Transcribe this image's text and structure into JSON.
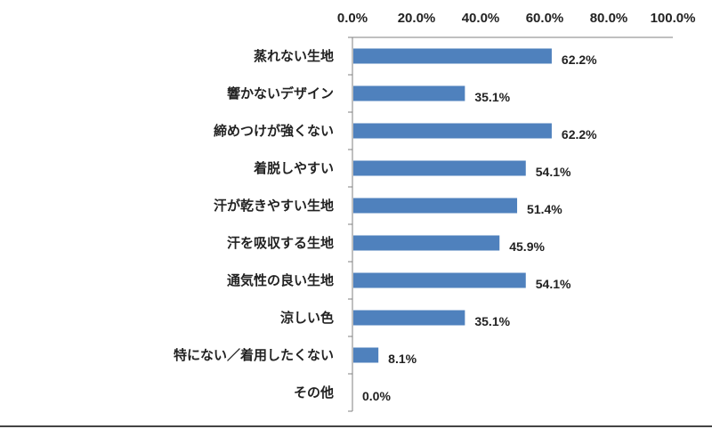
{
  "chart_data": {
    "type": "bar",
    "orientation": "horizontal",
    "title": "",
    "xlabel": "",
    "ylabel": "",
    "categories": [
      "蒸れない生地",
      "響かないデザイン",
      "締めつけが強くない",
      "着脱しやすい",
      "汗が乾きやすい生地",
      "汗を吸収する生地",
      "通気性の良い生地",
      "涼しい色",
      "特にない／着用したくない",
      "その他"
    ],
    "values": [
      62.2,
      35.1,
      62.2,
      54.1,
      51.4,
      45.9,
      54.1,
      35.1,
      8.1,
      0.0
    ],
    "value_labels": [
      "62.2%",
      "35.1%",
      "62.2%",
      "54.1%",
      "51.4%",
      "45.9%",
      "54.1%",
      "35.1%",
      "8.1%",
      "0.0%"
    ],
    "xlim": [
      0,
      100
    ],
    "x_ticks": [
      "0.0%",
      "20.0%",
      "40.0%",
      "60.0%",
      "80.0%",
      "100.0%"
    ],
    "axis_position": "top",
    "grid": false,
    "legend": "none",
    "bar_color": "#4F81BD"
  }
}
